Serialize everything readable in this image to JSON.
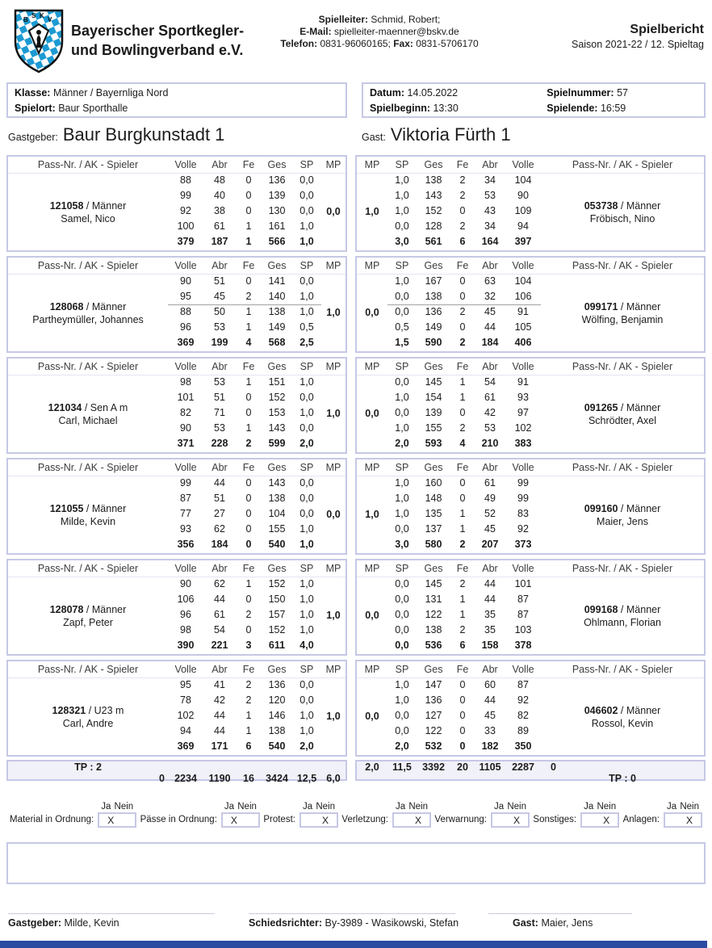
{
  "header": {
    "org_line1": "Bayerischer Sportkegler-",
    "org_line2": "und Bowlingverband e.V.",
    "logo": "bskv-crest",
    "contact": {
      "spielleiter_label": "Spielleiter:",
      "spielleiter": "Schmid, Robert;",
      "email_label": "E-Mail:",
      "email": "spielleiter-maenner@bskv.de",
      "telefon_label": "Telefon:",
      "telefon": "0831-96060165;",
      "fax_label": "Fax:",
      "fax": "0831-5706170"
    },
    "title": "Spielbericht",
    "subtitle": "Saison 2021-22 / 12. Spieltag"
  },
  "info": {
    "klasse_label": "Klasse:",
    "klasse": "Männer / Bayernliga Nord",
    "spielort_label": "Spielort:",
    "spielort": "Baur Sporthalle",
    "datum_label": "Datum:",
    "datum": "14.05.2022",
    "spielnummer_label": "Spielnummer:",
    "spielnummer": "57",
    "spielbeginn_label": "Spielbeginn:",
    "spielbeginn": "13:30",
    "spielende_label": "Spielende:",
    "spielende": "16:59"
  },
  "teams": {
    "home_label": "Gastgeber:",
    "home_name": "Baur Burgkunstadt 1",
    "guest_label": "Gast:",
    "guest_name": "Viktoria Fürth 1"
  },
  "score_table": {
    "home_headers": [
      "Pass-Nr. / AK - Spieler",
      "Volle",
      "Abr",
      "Fe",
      "Ges",
      "SP",
      "MP"
    ],
    "guest_headers": [
      "MP",
      "SP",
      "Ges",
      "Fe",
      "Abr",
      "Volle",
      "Pass-Nr. / AK - Spieler"
    ],
    "pass_separator": " / ",
    "pairs": [
      {
        "home": {
          "pass": "121058",
          "ak": "Männer",
          "name": "Samel, Nico",
          "mp": "0,0",
          "lanes": [
            [
              "88",
              "48",
              "0",
              "136",
              "0,0"
            ],
            [
              "99",
              "40",
              "0",
              "139",
              "0,0"
            ],
            [
              "92",
              "38",
              "0",
              "130",
              "0,0"
            ],
            [
              "100",
              "61",
              "1",
              "161",
              "1,0"
            ]
          ],
          "total": [
            "379",
            "187",
            "1",
            "566",
            "1,0"
          ]
        },
        "guest": {
          "pass": "053738",
          "ak": "Männer",
          "name": "Fröbisch, Nino",
          "mp": "1,0",
          "lanes": [
            [
              "1,0",
              "138",
              "2",
              "34",
              "104"
            ],
            [
              "1,0",
              "143",
              "2",
              "53",
              "90"
            ],
            [
              "1,0",
              "152",
              "0",
              "43",
              "109"
            ],
            [
              "0,0",
              "128",
              "2",
              "34",
              "94"
            ]
          ],
          "total": [
            "3,0",
            "561",
            "6",
            "164",
            "397"
          ]
        },
        "substitution_line": false
      },
      {
        "home": {
          "pass": "128068",
          "ak": "Männer",
          "name": "Partheymüller, Johannes",
          "mp": "1,0",
          "lanes": [
            [
              "90",
              "51",
              "0",
              "141",
              "0,0"
            ],
            [
              "95",
              "45",
              "2",
              "140",
              "1,0"
            ],
            [
              "88",
              "50",
              "1",
              "138",
              "1,0"
            ],
            [
              "96",
              "53",
              "1",
              "149",
              "0,5"
            ]
          ],
          "total": [
            "369",
            "199",
            "4",
            "568",
            "2,5"
          ]
        },
        "guest": {
          "pass": "099171",
          "ak": "Männer",
          "name": "Wölfing, Benjamin",
          "mp": "0,0",
          "lanes": [
            [
              "1,0",
              "167",
              "0",
              "63",
              "104"
            ],
            [
              "0,0",
              "138",
              "0",
              "32",
              "106"
            ],
            [
              "0,0",
              "136",
              "2",
              "45",
              "91"
            ],
            [
              "0,5",
              "149",
              "0",
              "44",
              "105"
            ]
          ],
          "total": [
            "1,5",
            "590",
            "2",
            "184",
            "406"
          ]
        },
        "substitution_line": true
      },
      {
        "home": {
          "pass": "121034",
          "ak": "Sen A m",
          "name": "Carl, Michael",
          "mp": "1,0",
          "lanes": [
            [
              "98",
              "53",
              "1",
              "151",
              "1,0"
            ],
            [
              "101",
              "51",
              "0",
              "152",
              "0,0"
            ],
            [
              "82",
              "71",
              "0",
              "153",
              "1,0"
            ],
            [
              "90",
              "53",
              "1",
              "143",
              "0,0"
            ]
          ],
          "total": [
            "371",
            "228",
            "2",
            "599",
            "2,0"
          ]
        },
        "guest": {
          "pass": "091265",
          "ak": "Männer",
          "name": "Schrödter, Axel",
          "mp": "0,0",
          "lanes": [
            [
              "0,0",
              "145",
              "1",
              "54",
              "91"
            ],
            [
              "1,0",
              "154",
              "1",
              "61",
              "93"
            ],
            [
              "0,0",
              "139",
              "0",
              "42",
              "97"
            ],
            [
              "1,0",
              "155",
              "2",
              "53",
              "102"
            ]
          ],
          "total": [
            "2,0",
            "593",
            "4",
            "210",
            "383"
          ]
        },
        "substitution_line": false
      },
      {
        "home": {
          "pass": "121055",
          "ak": "Männer",
          "name": "Milde, Kevin",
          "mp": "0,0",
          "lanes": [
            [
              "99",
              "44",
              "0",
              "143",
              "0,0"
            ],
            [
              "87",
              "51",
              "0",
              "138",
              "0,0"
            ],
            [
              "77",
              "27",
              "0",
              "104",
              "0,0"
            ],
            [
              "93",
              "62",
              "0",
              "155",
              "1,0"
            ]
          ],
          "total": [
            "356",
            "184",
            "0",
            "540",
            "1,0"
          ]
        },
        "guest": {
          "pass": "099160",
          "ak": "Männer",
          "name": "Maier, Jens",
          "mp": "1,0",
          "lanes": [
            [
              "1,0",
              "160",
              "0",
              "61",
              "99"
            ],
            [
              "1,0",
              "148",
              "0",
              "49",
              "99"
            ],
            [
              "1,0",
              "135",
              "1",
              "52",
              "83"
            ],
            [
              "0,0",
              "137",
              "1",
              "45",
              "92"
            ]
          ],
          "total": [
            "3,0",
            "580",
            "2",
            "207",
            "373"
          ]
        },
        "substitution_line": false
      },
      {
        "home": {
          "pass": "128078",
          "ak": "Männer",
          "name": "Zapf, Peter",
          "mp": "1,0",
          "lanes": [
            [
              "90",
              "62",
              "1",
              "152",
              "1,0"
            ],
            [
              "106",
              "44",
              "0",
              "150",
              "1,0"
            ],
            [
              "96",
              "61",
              "2",
              "157",
              "1,0"
            ],
            [
              "98",
              "54",
              "0",
              "152",
              "1,0"
            ]
          ],
          "total": [
            "390",
            "221",
            "3",
            "611",
            "4,0"
          ]
        },
        "guest": {
          "pass": "099168",
          "ak": "Männer",
          "name": "Ohlmann, Florian",
          "mp": "0,0",
          "lanes": [
            [
              "0,0",
              "145",
              "2",
              "44",
              "101"
            ],
            [
              "0,0",
              "131",
              "1",
              "44",
              "87"
            ],
            [
              "0,0",
              "122",
              "1",
              "35",
              "87"
            ],
            [
              "0,0",
              "138",
              "2",
              "35",
              "103"
            ]
          ],
          "total": [
            "0,0",
            "536",
            "6",
            "158",
            "378"
          ]
        },
        "substitution_line": false
      },
      {
        "home": {
          "pass": "128321",
          "ak": "U23 m",
          "name": "Carl, Andre",
          "mp": "1,0",
          "lanes": [
            [
              "95",
              "41",
              "2",
              "136",
              "0,0"
            ],
            [
              "78",
              "42",
              "2",
              "120",
              "0,0"
            ],
            [
              "102",
              "44",
              "1",
              "146",
              "1,0"
            ],
            [
              "94",
              "44",
              "1",
              "138",
              "1,0"
            ]
          ],
          "total": [
            "369",
            "171",
            "6",
            "540",
            "2,0"
          ]
        },
        "guest": {
          "pass": "046602",
          "ak": "Männer",
          "name": "Rossol, Kevin",
          "mp": "0,0",
          "lanes": [
            [
              "1,0",
              "147",
              "0",
              "60",
              "87"
            ],
            [
              "1,0",
              "136",
              "0",
              "44",
              "92"
            ],
            [
              "0,0",
              "127",
              "0",
              "45",
              "82"
            ],
            [
              "0,0",
              "122",
              "0",
              "33",
              "89"
            ]
          ],
          "total": [
            "2,0",
            "532",
            "0",
            "182",
            "350"
          ]
        },
        "substitution_line": false
      }
    ]
  },
  "totals": {
    "home": {
      "tp": "TP : 2",
      "extra": "0",
      "values": [
        "2234",
        "1190",
        "16",
        "3424",
        "12,5",
        "6,0"
      ]
    },
    "guest": {
      "values": [
        "2,0",
        "11,5",
        "3392",
        "20",
        "1105",
        "2287"
      ],
      "extra": "0",
      "tp": "TP : 0"
    }
  },
  "checklist": {
    "ja": "Ja",
    "nein": "Nein",
    "mark": "X",
    "items": [
      {
        "label": "Material in Ordnung:",
        "checked": "ja"
      },
      {
        "label": "Pässe in Ordnung:",
        "checked": "ja"
      },
      {
        "label": "Protest:",
        "checked": "nein"
      },
      {
        "label": "Verletzung:",
        "checked": "nein"
      },
      {
        "label": "Verwarnung:",
        "checked": "nein"
      },
      {
        "label": "Sonstiges:",
        "checked": "nein"
      },
      {
        "label": "Anlagen:",
        "checked": "nein"
      }
    ]
  },
  "signatures": {
    "home_label": "Gastgeber:",
    "home": "Milde, Kevin",
    "referee_label": "Schiedsrichter:",
    "referee": "By-3989 - Wasikowski, Stefan",
    "guest_label": "Gast:",
    "guest": "Maier, Jens"
  },
  "colors": {
    "logo_blue": "#1d9ad2",
    "border_lavender": "#c6c8e6",
    "bottom_bar_blue": "#2b4aa2"
  }
}
